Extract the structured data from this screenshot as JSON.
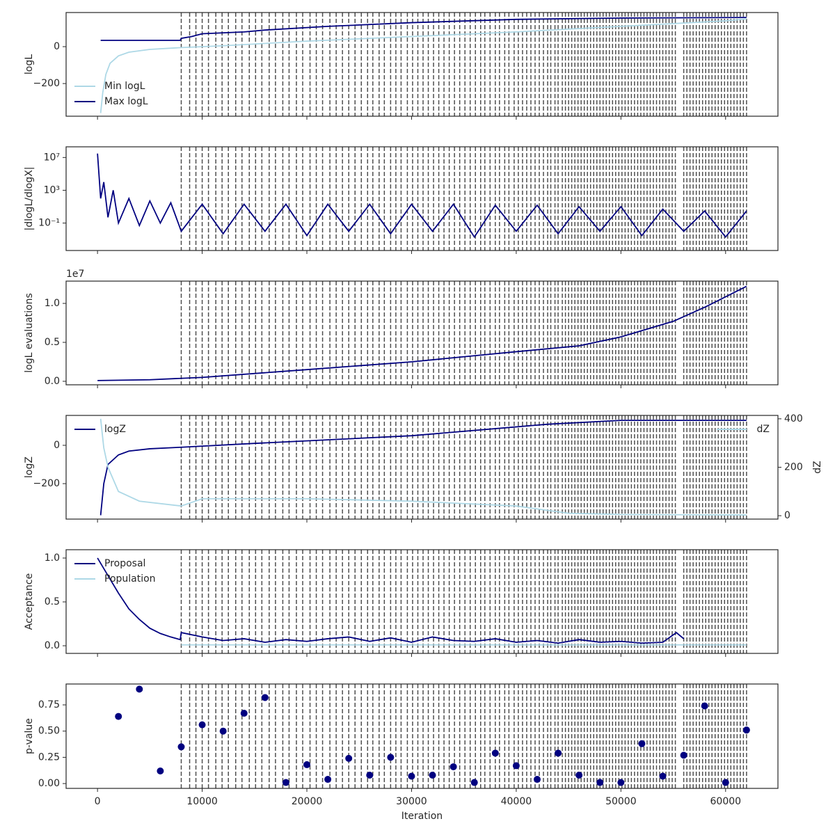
{
  "vlines": [
    8000,
    8800,
    9400,
    10000,
    10600,
    11300,
    11900,
    12500,
    13200,
    13800,
    14500,
    15100,
    15700,
    16400,
    17000,
    17700,
    18300,
    19000,
    19600,
    20300,
    20900,
    21500,
    22200,
    22800,
    23400,
    24000,
    24600,
    25200,
    25800,
    26300,
    26900,
    27400,
    28000,
    28500,
    29000,
    29600,
    30100,
    30600,
    31100,
    31600,
    32100,
    32600,
    33100,
    33600,
    34100,
    34600,
    35100,
    35600,
    36100,
    36600,
    37000,
    37500,
    38000,
    38400,
    38900,
    39300,
    39800,
    40200,
    40600,
    41000,
    41400,
    41800,
    42200,
    42600,
    43000,
    43300,
    43700,
    44000,
    44400,
    44700,
    45000,
    45300,
    45600,
    45900,
    46200,
    46500,
    46800,
    47100,
    47400,
    47700,
    48000,
    48300,
    48600,
    48900,
    49200,
    49500,
    49800,
    50100,
    50400,
    50700,
    51000,
    51300,
    51600,
    51900,
    52200,
    52500,
    52800,
    53100,
    53400,
    53700,
    54000,
    54300,
    54600,
    54900,
    55200,
    56000,
    56300,
    56600,
    56900,
    57200,
    57500,
    57800,
    58100,
    58400,
    58700,
    59000,
    59300,
    59600,
    59900,
    60200,
    60500,
    60800,
    61100,
    61400,
    61700,
    62000
  ],
  "chart_data": [
    {
      "type": "line",
      "ylabel": "logL",
      "ylim": [
        -377,
        185
      ],
      "yticks": [
        {
          "value": -200,
          "label": "−200"
        },
        0
      ],
      "legend": "lower left",
      "series": [
        {
          "name": "Min logL",
          "color": "#add8e6",
          "x": [
            300,
            500,
            800,
            1200,
            2000,
            3000,
            5000,
            8000,
            12000,
            20000,
            30000,
            40000,
            50000,
            60000,
            62000
          ],
          "values": [
            -360,
            -250,
            -150,
            -90,
            -50,
            -30,
            -15,
            -5,
            5,
            30,
            55,
            80,
            110,
            140,
            150
          ]
        },
        {
          "name": "Max logL",
          "color": "#000080",
          "x": [
            300,
            7900,
            8000,
            9000,
            10000,
            14000,
            16000,
            22000,
            30000,
            40000,
            50000,
            62000
          ],
          "values": [
            34,
            34,
            45,
            55,
            70,
            80,
            90,
            110,
            130,
            148,
            155,
            158
          ]
        }
      ]
    },
    {
      "type": "line",
      "ylabel": "|dlogL/dlogX|",
      "log": true,
      "ylim": [
        4.5e-05,
        200000000.0
      ],
      "yticks": [
        {
          "value": 0.1,
          "label": "10⁻¹"
        },
        {
          "value": 1000,
          "label": "10³"
        },
        {
          "value": 10000000,
          "label": "10⁷"
        }
      ],
      "series": [
        {
          "name": "|dlogL/dlogX|",
          "color": "#000080",
          "x": [
            0,
            300,
            600,
            1000,
            1500,
            2000,
            3000,
            4000,
            5000,
            6000,
            7000,
            8000,
            10000,
            12000,
            14000,
            16000,
            18000,
            20000,
            22000,
            24000,
            26000,
            28000,
            30000,
            32000,
            34000,
            36000,
            38000,
            40000,
            42000,
            44000,
            46000,
            48000,
            50000,
            52000,
            54000,
            56000,
            58000,
            60000,
            62000
          ],
          "values": [
            30000000,
            100,
            10000,
            0.5,
            1000,
            0.1,
            100,
            0.05,
            50,
            0.1,
            30,
            0.01,
            20,
            0.005,
            20,
            0.01,
            20,
            0.003,
            20,
            0.01,
            20,
            0.005,
            20,
            0.01,
            20,
            0.002,
            15,
            0.01,
            15,
            0.005,
            10,
            0.01,
            10,
            0.003,
            5,
            0.01,
            3,
            0.002,
            3
          ]
        }
      ]
    },
    {
      "type": "line",
      "ylabel": "logL evaluations",
      "offset_text": "1e7",
      "ylim": [
        -0.045,
        1.286
      ],
      "yticks": [
        {
          "value": 0,
          "label": "0.0"
        },
        0.5,
        {
          "value": 1,
          "label": "1.0"
        }
      ],
      "series": [
        {
          "name": "logL evaluations",
          "color": "#000080",
          "x": [
            0,
            5000,
            10000,
            20000,
            30000,
            40000,
            46000,
            50000,
            55000,
            58000,
            62000
          ],
          "values": [
            0.01,
            0.02,
            0.05,
            0.15,
            0.25,
            0.38,
            0.455,
            0.57,
            0.77,
            0.95,
            1.22
          ]
        }
      ]
    },
    {
      "type": "line",
      "ylabel": "logZ",
      "y2label": "dZ",
      "ylim": [
        -385,
        156
      ],
      "y2lim": [
        -14,
        414
      ],
      "yticks": [
        {
          "value": -200,
          "label": "−200"
        },
        0
      ],
      "y2ticks": [
        0,
        200,
        400
      ],
      "legend": "upper left",
      "legend2": "upper right",
      "series": [
        {
          "name": "logZ",
          "color": "#000080",
          "x": [
            300,
            600,
            1000,
            2000,
            3000,
            5000,
            8000,
            15000,
            30000,
            43000,
            50000,
            62000
          ],
          "values": [
            -365,
            -200,
            -100,
            -50,
            -30,
            -18,
            -10,
            10,
            50,
            110,
            130,
            130
          ]
        },
        {
          "name": "dZ",
          "color": "#add8e6",
          "axis": "y2",
          "x": [
            300,
            600,
            1000,
            2000,
            4000,
            8000,
            10000,
            20000,
            30000,
            40000,
            45000,
            50000,
            62000
          ],
          "values": [
            400,
            280,
            200,
            100,
            60,
            40,
            70,
            70,
            60,
            40,
            10,
            5,
            3
          ]
        }
      ]
    },
    {
      "type": "line",
      "ylabel": "Acceptance",
      "ylim": [
        -0.087,
        1.095
      ],
      "yticks": [
        {
          "value": 0,
          "label": "0.0"
        },
        0.5,
        {
          "value": 1,
          "label": "1.0"
        }
      ],
      "legend": "upper left",
      "series": [
        {
          "name": "Proposal",
          "color": "#000080",
          "x": [
            0,
            1000,
            2000,
            3000,
            4000,
            5000,
            6000,
            7000,
            7900,
            8000,
            10000,
            12000,
            14000,
            16000,
            18000,
            20000,
            22000,
            24000,
            26000,
            28000,
            30000,
            32000,
            34000,
            36000,
            38000,
            40000,
            42000,
            44000,
            46000,
            48000,
            50000,
            52000,
            54000,
            55300,
            56000
          ],
          "values": [
            1.0,
            0.8,
            0.6,
            0.42,
            0.3,
            0.2,
            0.14,
            0.1,
            0.07,
            0.15,
            0.1,
            0.06,
            0.08,
            0.04,
            0.07,
            0.05,
            0.08,
            0.1,
            0.05,
            0.09,
            0.04,
            0.1,
            0.06,
            0.05,
            0.08,
            0.04,
            0.06,
            0.03,
            0.07,
            0.04,
            0.05,
            0.03,
            0.04,
            0.15,
            0.08
          ]
        },
        {
          "name": "Population",
          "color": "#add8e6",
          "x": [
            8000,
            20000,
            40000,
            62000
          ],
          "values": [
            0.01,
            0.01,
            0.01,
            0.01
          ]
        }
      ]
    },
    {
      "type": "scatter",
      "ylabel": "p-value",
      "xlabel": "Iteration",
      "ylim": [
        -0.046,
        0.949
      ],
      "yticks": [
        {
          "value": 0,
          "label": "0.00"
        },
        0.25,
        {
          "value": 0.5,
          "label": "0.50"
        },
        0.75
      ],
      "xlim": [
        -3000,
        65000
      ],
      "xticks": [
        0,
        10000,
        20000,
        30000,
        40000,
        50000,
        60000
      ],
      "series": [
        {
          "name": "p-value",
          "color": "#000080",
          "x": [
            2000,
            4000,
            6000,
            8000,
            10000,
            12000,
            14000,
            16000,
            18000,
            20000,
            22000,
            24000,
            26000,
            28000,
            30000,
            32000,
            34000,
            36000,
            38000,
            40000,
            42000,
            44000,
            46000,
            48000,
            50000,
            52000,
            54000,
            56000,
            58000,
            60000,
            62000
          ],
          "values": [
            0.64,
            0.9,
            0.12,
            0.35,
            0.56,
            0.5,
            0.67,
            0.82,
            0.01,
            0.18,
            0.04,
            0.24,
            0.08,
            0.25,
            0.07,
            0.08,
            0.16,
            0.01,
            0.29,
            0.17,
            0.04,
            0.29,
            0.08,
            0.01,
            0.01,
            0.38,
            0.07,
            0.27,
            0.74,
            0.01,
            0.51
          ]
        }
      ]
    }
  ]
}
